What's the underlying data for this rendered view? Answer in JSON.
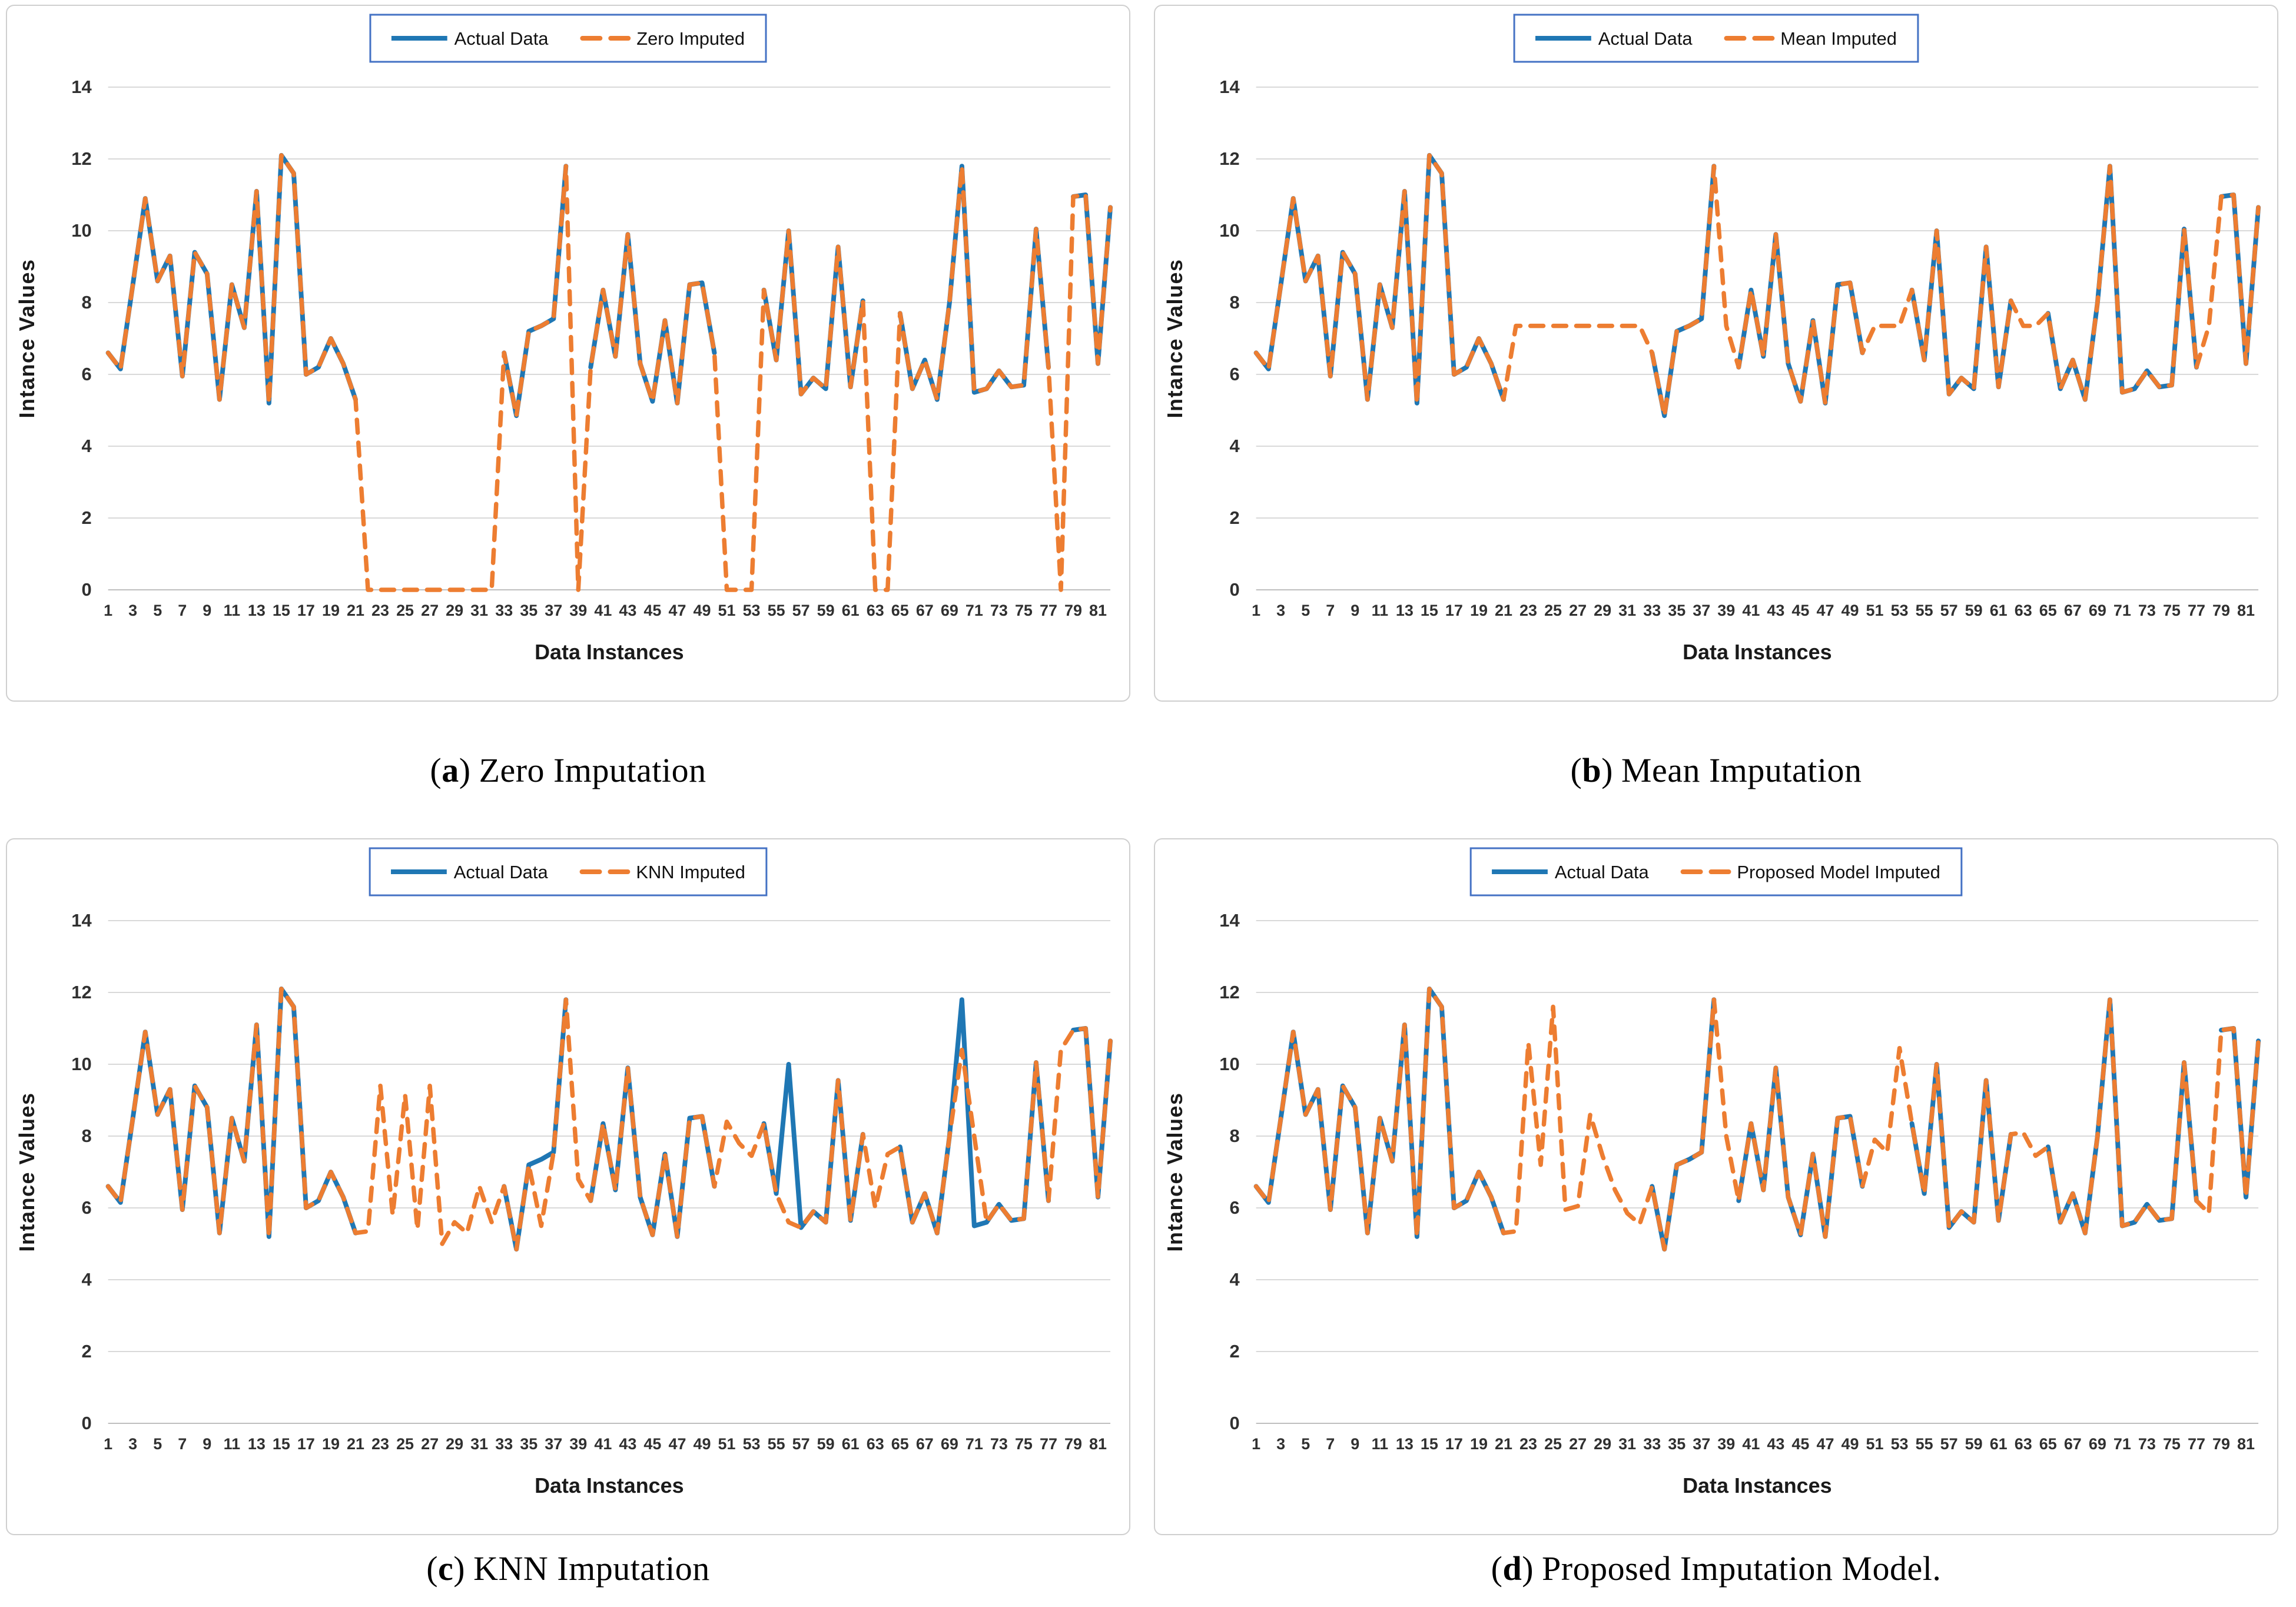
{
  "styles": {
    "actual_color": "#1F77B4",
    "imputed_color": "#ED7D31",
    "legend_border_color": "#4472C4",
    "gridline_color": "#D9D9D9",
    "baseline_color": "#BFBFBF",
    "tick_text_color": "#303030",
    "axis_title_color": "#1a1a1a",
    "panel_border_color": "#CFCFCF",
    "background": "#FFFFFF"
  },
  "axes_shared": {
    "xlabel": "Data Instances",
    "ylabel": "Intance Values",
    "ylim": [
      0,
      14
    ],
    "yticks": [
      0,
      2,
      4,
      6,
      8,
      10,
      12,
      14
    ],
    "xticks": [
      1,
      3,
      5,
      7,
      9,
      11,
      13,
      15,
      17,
      19,
      21,
      23,
      25,
      27,
      29,
      31,
      33,
      35,
      37,
      39,
      41,
      43,
      45,
      47,
      49,
      51,
      53,
      55,
      57,
      59,
      61,
      63,
      65,
      67,
      69,
      71,
      73,
      75,
      77,
      79,
      81
    ],
    "grid": "horizontal-only",
    "legend_position": "top-center"
  },
  "chart_data": [
    {
      "type": "line",
      "panel_id": "a",
      "caption_letter": "a",
      "caption_text": "Zero Imputation",
      "legend": [
        "Actual Data",
        "Zero Imputed"
      ],
      "xlabel": "Data Instances",
      "ylabel": "Intance Values",
      "ylim": [
        0,
        14
      ],
      "series": [
        {
          "name": "Actual Data",
          "style": "solid",
          "values": [
            6.6,
            6.15,
            8.5,
            10.9,
            8.6,
            9.3,
            5.95,
            9.4,
            8.8,
            5.3,
            8.5,
            7.3,
            11.1,
            5.2,
            12.1,
            11.6,
            6.0,
            6.2,
            7.0,
            6.3,
            5.3,
            null,
            null,
            null,
            null,
            null,
            null,
            null,
            null,
            null,
            null,
            null,
            6.6,
            4.85,
            7.2,
            7.35,
            7.55,
            11.8,
            null,
            6.2,
            8.35,
            6.5,
            9.9,
            6.3,
            5.25,
            7.5,
            5.2,
            8.5,
            8.55,
            6.6,
            null,
            null,
            null,
            8.35,
            6.4,
            10.0,
            5.45,
            5.9,
            5.6,
            9.55,
            5.65,
            8.05,
            null,
            null,
            7.7,
            5.6,
            6.4,
            5.3,
            8.0,
            11.8,
            5.5,
            5.6,
            6.1,
            5.65,
            5.7,
            10.05,
            6.2,
            null,
            10.95,
            11.0,
            6.3,
            10.65
          ]
        },
        {
          "name": "Zero Imputed",
          "style": "dashed",
          "values": [
            6.6,
            6.15,
            8.5,
            10.9,
            8.6,
            9.3,
            5.95,
            9.4,
            8.8,
            5.3,
            8.5,
            7.3,
            11.1,
            5.2,
            12.1,
            11.6,
            6.0,
            6.2,
            7.0,
            6.3,
            5.3,
            0,
            0,
            0,
            0,
            0,
            0,
            0,
            0,
            0,
            0,
            0,
            6.6,
            4.85,
            7.2,
            7.35,
            7.55,
            11.8,
            0,
            6.2,
            8.35,
            6.5,
            9.9,
            6.3,
            5.25,
            7.5,
            5.2,
            8.5,
            8.55,
            6.6,
            0,
            0,
            0,
            8.35,
            6.4,
            10.0,
            5.45,
            5.9,
            5.6,
            9.55,
            5.65,
            8.05,
            0,
            0,
            7.7,
            5.6,
            6.4,
            5.3,
            8.0,
            11.8,
            5.5,
            5.6,
            6.1,
            5.65,
            5.7,
            10.05,
            6.2,
            0,
            10.95,
            11.0,
            6.3,
            10.65
          ]
        }
      ]
    },
    {
      "type": "line",
      "panel_id": "b",
      "caption_letter": "b",
      "caption_text": "Mean Imputation",
      "legend": [
        "Actual Data",
        "Mean Imputed"
      ],
      "xlabel": "Data Instances",
      "ylabel": "Intance Values",
      "ylim": [
        0,
        14
      ],
      "series": [
        {
          "name": "Actual Data",
          "style": "solid",
          "values": [
            6.6,
            6.15,
            8.5,
            10.9,
            8.6,
            9.3,
            5.95,
            9.4,
            8.8,
            5.3,
            8.5,
            7.3,
            11.1,
            5.2,
            12.1,
            11.6,
            6.0,
            6.2,
            7.0,
            6.3,
            5.3,
            null,
            null,
            null,
            null,
            null,
            null,
            null,
            null,
            null,
            null,
            null,
            6.6,
            4.85,
            7.2,
            7.35,
            7.55,
            11.8,
            null,
            6.2,
            8.35,
            6.5,
            9.9,
            6.3,
            5.25,
            7.5,
            5.2,
            8.5,
            8.55,
            6.6,
            null,
            null,
            null,
            8.35,
            6.4,
            10.0,
            5.45,
            5.9,
            5.6,
            9.55,
            5.65,
            8.05,
            null,
            null,
            7.7,
            5.6,
            6.4,
            5.3,
            8.0,
            11.8,
            5.5,
            5.6,
            6.1,
            5.65,
            5.7,
            10.05,
            6.2,
            null,
            10.95,
            11.0,
            6.3,
            10.65
          ]
        },
        {
          "name": "Mean Imputed",
          "style": "dashed",
          "values": [
            6.6,
            6.15,
            8.5,
            10.9,
            8.6,
            9.3,
            5.95,
            9.4,
            8.8,
            5.3,
            8.5,
            7.3,
            11.1,
            5.2,
            12.1,
            11.6,
            6.0,
            6.2,
            7.0,
            6.3,
            5.3,
            7.35,
            7.35,
            7.35,
            7.35,
            7.35,
            7.35,
            7.35,
            7.35,
            7.35,
            7.35,
            7.35,
            6.6,
            4.85,
            7.2,
            7.35,
            7.55,
            11.8,
            7.35,
            6.2,
            8.35,
            6.5,
            9.9,
            6.3,
            5.25,
            7.5,
            5.2,
            8.5,
            8.55,
            6.6,
            7.35,
            7.35,
            7.35,
            8.35,
            6.4,
            10.0,
            5.45,
            5.9,
            5.6,
            9.55,
            5.65,
            8.05,
            7.35,
            7.35,
            7.7,
            5.6,
            6.4,
            5.3,
            8.0,
            11.8,
            5.5,
            5.6,
            6.1,
            5.65,
            5.7,
            10.05,
            6.2,
            7.35,
            10.95,
            11.0,
            6.3,
            10.65
          ]
        }
      ]
    },
    {
      "type": "line",
      "panel_id": "c",
      "caption_letter": "c",
      "caption_text": "KNN Imputation",
      "legend": [
        "Actual Data",
        "KNN Imputed"
      ],
      "xlabel": "Data Instances",
      "ylabel": "Intance Values",
      "ylim": [
        0,
        14
      ],
      "series": [
        {
          "name": "Actual Data",
          "style": "solid",
          "values": [
            6.6,
            6.15,
            8.5,
            10.9,
            8.6,
            9.3,
            5.95,
            9.4,
            8.8,
            5.3,
            8.5,
            7.3,
            11.1,
            5.2,
            12.1,
            11.6,
            6.0,
            6.2,
            7.0,
            6.3,
            5.3,
            null,
            null,
            null,
            null,
            null,
            null,
            null,
            null,
            null,
            null,
            null,
            6.6,
            4.85,
            7.2,
            7.35,
            7.55,
            11.8,
            null,
            6.2,
            8.35,
            6.5,
            9.9,
            6.3,
            5.25,
            7.5,
            5.2,
            8.5,
            8.55,
            6.6,
            null,
            null,
            null,
            8.35,
            6.4,
            10.0,
            5.45,
            5.9,
            5.6,
            9.55,
            5.65,
            8.05,
            null,
            null,
            7.7,
            5.6,
            6.4,
            5.3,
            8.0,
            11.8,
            5.5,
            5.6,
            6.1,
            5.65,
            5.7,
            10.05,
            6.2,
            null,
            10.95,
            11.0,
            6.3,
            10.65
          ]
        },
        {
          "name": "KNN Imputed",
          "style": "dashed",
          "values": [
            6.6,
            6.15,
            8.5,
            10.9,
            8.6,
            9.3,
            5.95,
            9.4,
            8.8,
            5.3,
            8.5,
            7.3,
            11.1,
            5.2,
            12.1,
            11.6,
            6.0,
            6.2,
            7.0,
            6.3,
            5.3,
            5.35,
            9.4,
            5.8,
            9.15,
            5.4,
            9.4,
            5.0,
            5.6,
            5.3,
            6.6,
            5.6,
            6.6,
            4.85,
            7.2,
            5.5,
            7.55,
            11.8,
            6.8,
            6.2,
            8.35,
            6.5,
            9.9,
            6.3,
            5.25,
            7.5,
            5.2,
            8.5,
            8.55,
            6.6,
            8.4,
            7.8,
            7.45,
            8.35,
            6.4,
            5.6,
            5.45,
            5.9,
            5.6,
            9.55,
            5.65,
            8.05,
            6.0,
            7.5,
            7.7,
            5.6,
            6.4,
            5.3,
            8.0,
            10.4,
            8.0,
            5.6,
            6.1,
            5.65,
            5.7,
            10.05,
            6.2,
            10.4,
            10.95,
            11.0,
            6.3,
            10.65
          ]
        }
      ]
    },
    {
      "type": "line",
      "panel_id": "d",
      "caption_letter": "d",
      "caption_text": "Proposed Imputation Model.",
      "legend": [
        "Actual Data",
        "Proposed Model Imputed"
      ],
      "xlabel": "Data Instances",
      "ylabel": "Intance Values",
      "ylim": [
        0,
        14
      ],
      "series": [
        {
          "name": "Actual Data",
          "style": "solid",
          "values": [
            6.6,
            6.15,
            8.5,
            10.9,
            8.6,
            9.3,
            5.95,
            9.4,
            8.8,
            5.3,
            8.5,
            7.3,
            11.1,
            5.2,
            12.1,
            11.6,
            6.0,
            6.2,
            7.0,
            6.3,
            5.3,
            null,
            null,
            null,
            null,
            null,
            null,
            null,
            null,
            null,
            null,
            null,
            6.6,
            4.85,
            7.2,
            7.35,
            7.55,
            11.8,
            null,
            6.2,
            8.35,
            6.5,
            9.9,
            6.3,
            5.25,
            7.5,
            5.2,
            8.5,
            8.55,
            6.6,
            null,
            null,
            null,
            8.35,
            6.4,
            10.0,
            5.45,
            5.9,
            5.6,
            9.55,
            5.65,
            8.05,
            null,
            null,
            7.7,
            5.6,
            6.4,
            5.3,
            8.0,
            11.8,
            5.5,
            5.6,
            6.1,
            5.65,
            5.7,
            10.05,
            6.2,
            null,
            10.95,
            11.0,
            6.3,
            10.65
          ]
        },
        {
          "name": "Proposed Model Imputed",
          "style": "dashed",
          "values": [
            6.6,
            6.15,
            8.5,
            10.9,
            8.6,
            9.3,
            5.95,
            9.4,
            8.8,
            5.3,
            8.5,
            7.3,
            11.1,
            5.2,
            12.1,
            11.6,
            6.0,
            6.2,
            7.0,
            6.3,
            5.3,
            5.35,
            10.6,
            7.2,
            11.6,
            5.95,
            6.05,
            8.6,
            7.45,
            6.5,
            5.85,
            5.55,
            6.6,
            4.85,
            7.2,
            7.35,
            7.55,
            11.8,
            8.0,
            6.2,
            8.35,
            6.5,
            9.9,
            6.3,
            5.25,
            7.5,
            5.2,
            8.5,
            8.55,
            6.6,
            7.9,
            7.55,
            10.45,
            8.35,
            6.4,
            10.0,
            5.45,
            5.9,
            5.6,
            9.55,
            5.65,
            8.05,
            8.1,
            7.45,
            7.7,
            5.6,
            6.4,
            5.3,
            8.0,
            11.8,
            5.5,
            5.6,
            6.1,
            5.65,
            5.7,
            10.05,
            6.2,
            5.85,
            10.95,
            11.0,
            6.3,
            10.65
          ]
        }
      ]
    }
  ]
}
